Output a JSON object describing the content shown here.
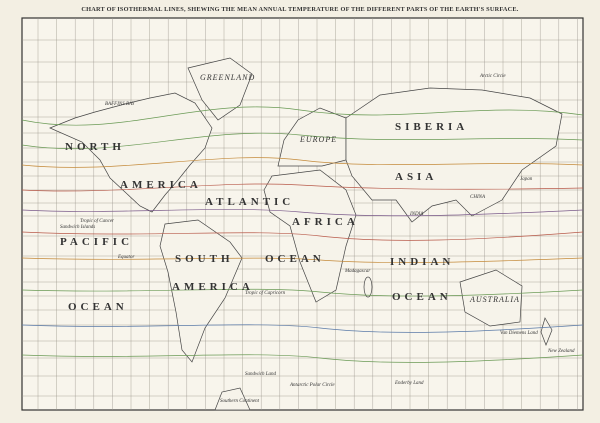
{
  "title": "CHART OF ISOTHERMAL LINES, SHEWING THE MEAN ANNUAL TEMPERATURE OF THE DIFFERENT PARTS OF THE EARTH'S SURFACE.",
  "labels": [
    "NORTH",
    "AMERICA",
    "GREENLAND",
    "BAFFINS BAY",
    "SIBERIA",
    "ASIA",
    "EUROPE",
    "AFRICA",
    "ATLANTIC",
    "PACIFIC",
    "OCEAN",
    "SOUTH",
    "AMERICA",
    "INDIAN",
    "OCEAN",
    "AUSTRALIA",
    "OCEAN",
    "Tropic of Cancer",
    "Tropic of Capricorn",
    "Equator",
    "Arctic Circle",
    "Antarctic Polar Circle",
    "INDIA",
    "CHINA",
    "Japan",
    "Madagascar",
    "Sandwich Islands",
    "New Zealand",
    "Van Diemens Land",
    "Southern Continent",
    "Enderby Land",
    "Sandwich Land"
  ]
}
